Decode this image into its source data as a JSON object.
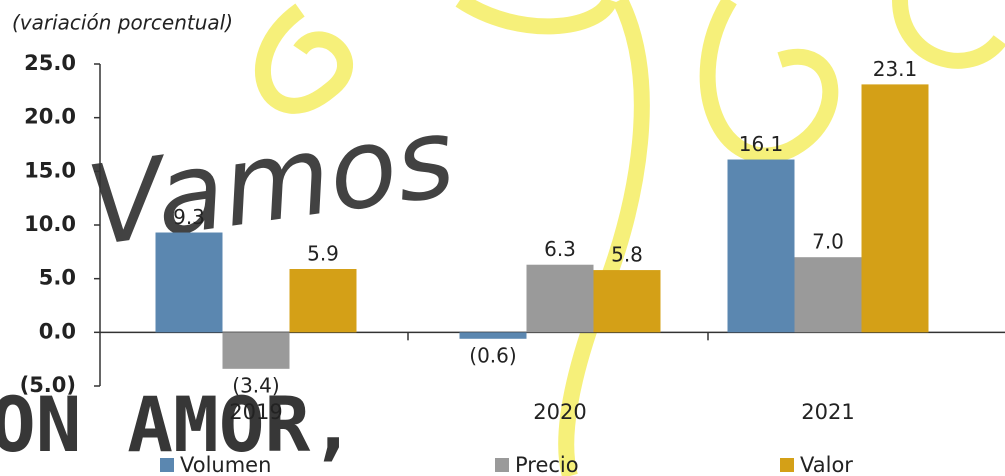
{
  "chart_data": {
    "type": "bar",
    "subtitle": "(variación porcentual)",
    "categories": [
      "2019",
      "2020",
      "2021"
    ],
    "series": [
      {
        "name": "Volumen",
        "color": "#5b87b0",
        "values": [
          9.3,
          -0.6,
          16.1
        ],
        "value_labels": [
          "9.3",
          "(0.6)",
          "16.1"
        ]
      },
      {
        "name": "Precio",
        "color": "#9a9a9a",
        "values": [
          -3.4,
          6.3,
          7.0
        ],
        "value_labels": [
          "(3.4)",
          "6.3",
          "7.0"
        ]
      },
      {
        "name": "Valor",
        "color": "#d4a017",
        "values": [
          5.9,
          5.8,
          23.1
        ],
        "value_labels": [
          "5.9",
          "5.8",
          "23.1"
        ]
      }
    ],
    "ylim": [
      -5,
      25
    ],
    "yticks": [
      {
        "value": -5,
        "label": "(5.0)"
      },
      {
        "value": 0,
        "label": "0.0"
      },
      {
        "value": 5,
        "label": "5.0"
      },
      {
        "value": 10,
        "label": "10.0"
      },
      {
        "value": 15,
        "label": "15.0"
      },
      {
        "value": 20,
        "label": "20.0"
      },
      {
        "value": 25,
        "label": "25.0"
      }
    ],
    "legend": "bottom",
    "annotations": [
      "Vamos",
      "ON AMOR,"
    ]
  }
}
